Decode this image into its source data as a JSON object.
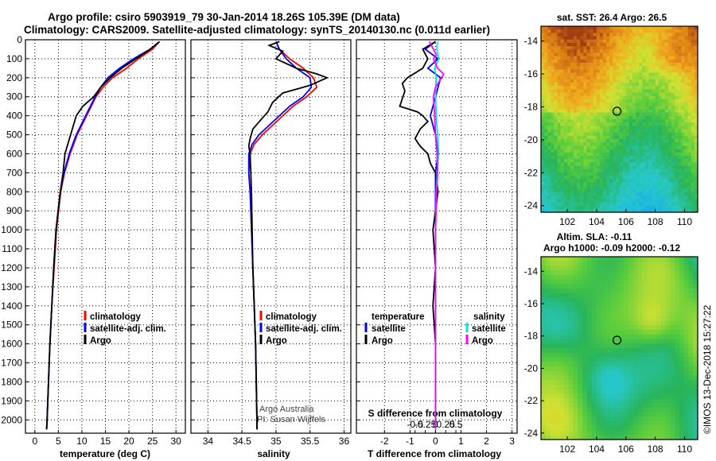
{
  "title_line1": "Argo profile: csiro 5903919_79 30-Jan-2014 18.26S 105.39E (DM data)",
  "title_line2": "Climatology: CARS2009. Satellite-adjusted climatology: synTS_20140130.nc (0.011d earlier)",
  "timestamp": "©IMOS 13-Dec-2018 15:27:22",
  "credit_line1": "Argo Australia",
  "credit_line2": "PI: Susan Wijffels",
  "colors": {
    "climatology": "#ff0000",
    "satellite": "#0000ff",
    "argo": "#000000",
    "sal_satellite": "#00e5e5",
    "sal_argo": "#ff00ff"
  },
  "chart_data": [
    {
      "type": "line",
      "name": "temperature",
      "xlabel": "temperature (deg C)",
      "ylabel": "",
      "xlim": [
        -2,
        32
      ],
      "ylim": [
        2070,
        0
      ],
      "xticks": [
        0,
        5,
        10,
        15,
        20,
        25,
        30
      ],
      "yticks": [
        0,
        100,
        200,
        300,
        400,
        500,
        600,
        700,
        800,
        900,
        1000,
        1100,
        1200,
        1300,
        1400,
        1500,
        1600,
        1700,
        1800,
        1900,
        2000
      ],
      "legend": [
        "climatology",
        "satellite-adj. clim.",
        "Argo"
      ],
      "series": [
        {
          "name": "climatology",
          "color": "#ff0000",
          "depth": [
            10,
            50,
            100,
            150,
            200,
            250,
            300,
            400,
            500,
            600,
            700,
            800,
            1000,
            1200,
            1400,
            1600,
            1800,
            2000,
            2050
          ],
          "values": [
            26.5,
            25,
            22,
            19.5,
            16.5,
            14.5,
            13,
            11,
            9,
            7.5,
            6.3,
            5.5,
            4.6,
            4.1,
            3.6,
            3.2,
            2.9,
            2.6,
            2.5
          ]
        },
        {
          "name": "satellite-adj. clim.",
          "color": "#0000ff",
          "depth": [
            10,
            50,
            100,
            150,
            200,
            250,
            300,
            400,
            500,
            600,
            700,
            800,
            1000,
            1200,
            1400,
            1600,
            1800,
            2000,
            2050
          ],
          "values": [
            26.5,
            24.5,
            21,
            18,
            15.5,
            14,
            12.8,
            10.8,
            8.8,
            7.3,
            6.2,
            5.4,
            4.5,
            4,
            3.6,
            3.2,
            2.9,
            2.6,
            2.5
          ]
        },
        {
          "name": "Argo",
          "color": "#000000",
          "depth": [
            10,
            50,
            100,
            150,
            200,
            250,
            300,
            350,
            400,
            450,
            500,
            600,
            700,
            800,
            1000,
            1200,
            1400,
            1600,
            1800,
            2000,
            2050
          ],
          "values": [
            26.5,
            24.5,
            21.5,
            18.5,
            16,
            14,
            12.5,
            10.2,
            8.8,
            8.2,
            7.6,
            6.4,
            6,
            5.4,
            4.5,
            4,
            3.6,
            3.2,
            2.9,
            2.6,
            2.5
          ]
        }
      ]
    },
    {
      "type": "line",
      "name": "salinity",
      "xlabel": "salinity",
      "ylabel": "",
      "xlim": [
        33.75,
        36.1
      ],
      "ylim": [
        2070,
        0
      ],
      "xticks": [
        34,
        34.5,
        35,
        35.5,
        36
      ],
      "legend": [
        "climatology",
        "satellite-adj. clim.",
        "Argo"
      ],
      "series": [
        {
          "name": "climatology",
          "color": "#ff0000",
          "depth": [
            10,
            50,
            100,
            150,
            200,
            250,
            300,
            350,
            400,
            450,
            500,
            550,
            600,
            700,
            800,
            1000,
            1200,
            1400,
            1600,
            1800,
            2000,
            2050
          ],
          "values": [
            35.0,
            35.05,
            35.2,
            35.4,
            35.55,
            35.6,
            35.45,
            35.25,
            35.1,
            34.95,
            34.8,
            34.68,
            34.62,
            34.6,
            34.62,
            34.64,
            34.66,
            34.68,
            34.7,
            34.71,
            34.72,
            34.72
          ]
        },
        {
          "name": "satellite-adj. clim.",
          "color": "#0000ff",
          "depth": [
            10,
            50,
            100,
            150,
            200,
            250,
            300,
            350,
            400,
            450,
            500,
            550,
            600,
            700,
            800,
            1000,
            1200,
            1400,
            1600,
            1800,
            2000,
            2050
          ],
          "values": [
            35.0,
            35.05,
            35.15,
            35.3,
            35.5,
            35.52,
            35.4,
            35.2,
            35.05,
            34.9,
            34.75,
            34.65,
            34.6,
            34.6,
            34.62,
            34.64,
            34.66,
            34.68,
            34.7,
            34.71,
            34.72,
            34.72
          ]
        },
        {
          "name": "Argo",
          "color": "#000000",
          "depth": [
            10,
            30,
            60,
            100,
            150,
            180,
            200,
            240,
            280,
            330,
            380,
            420,
            470,
            520,
            560,
            600,
            700,
            800,
            1000,
            1200,
            1400,
            1600,
            1800,
            2000,
            2050
          ],
          "values": [
            35.05,
            34.9,
            35.1,
            35.0,
            35.3,
            35.6,
            35.75,
            35.5,
            35.1,
            34.95,
            34.88,
            34.78,
            34.66,
            34.62,
            34.6,
            34.62,
            34.63,
            34.64,
            34.65,
            34.66,
            34.68,
            34.7,
            34.71,
            34.72,
            34.72
          ]
        }
      ]
    },
    {
      "type": "line",
      "name": "difference from climatology",
      "xlabel": "T difference from climatology",
      "xlabel2": "S difference from climatology",
      "xlim": [
        -3.1,
        3.2
      ],
      "ylim": [
        2070,
        0
      ],
      "xticks": [
        -2,
        -1,
        0,
        1,
        2,
        3
      ],
      "s_xticks": [
        -0.5,
        -0.25,
        0,
        0.25,
        0.5
      ],
      "s_tick_labels": [
        "-0.5",
        "-0.25",
        "0",
        "0.25",
        "0.5"
      ],
      "legend_left_title": "temperature",
      "legend_right_title": "salinity",
      "legend": [
        "satellite",
        "Argo",
        "satellite",
        "Argo"
      ],
      "series": [
        {
          "name": "T satellite",
          "color": "#0000ff",
          "depth": [
            10,
            50,
            100,
            150,
            200,
            300,
            400,
            500,
            600,
            700,
            800,
            1000,
            1500,
            2000,
            2050
          ],
          "values": [
            0,
            -0.4,
            0.1,
            -0.3,
            0.2,
            0,
            -0.2,
            0,
            0.1,
            0,
            0,
            0,
            0,
            0,
            0
          ]
        },
        {
          "name": "T Argo",
          "color": "#000000",
          "depth": [
            10,
            50,
            100,
            150,
            200,
            230,
            270,
            310,
            350,
            380,
            400,
            430,
            470,
            520,
            560,
            600,
            650,
            700,
            800,
            900,
            1000,
            1200,
            1400,
            1600,
            2000,
            2050
          ],
          "values": [
            0,
            -0.5,
            -0.3,
            -0.5,
            -1.1,
            -1.3,
            -1.2,
            -1.3,
            -1.4,
            -0.7,
            -0.5,
            -0.3,
            -0.6,
            -0.8,
            -0.6,
            -0.3,
            -0.2,
            0,
            0.1,
            0,
            -0.1,
            0,
            -0.1,
            0,
            0,
            0
          ]
        },
        {
          "name": "S satellite",
          "color": "#00e5e5",
          "s_depth": [
            10,
            50,
            100,
            150,
            200,
            300,
            400,
            500,
            600,
            700,
            800,
            1000,
            1500,
            2000,
            2050
          ],
          "s_values": [
            0.05,
            0.03,
            0.08,
            -0.02,
            0.02,
            0,
            0.02,
            0.05,
            0.08,
            0.04,
            0.02,
            0,
            0,
            0,
            0
          ]
        },
        {
          "name": "S Argo",
          "color": "#ff00ff",
          "s_depth": [
            10,
            50,
            80,
            100,
            150,
            180,
            200,
            250,
            300,
            400,
            500,
            600,
            700,
            800,
            1000,
            1500,
            2000,
            2050
          ],
          "s_values": [
            -0.15,
            -0.05,
            0.02,
            -0.05,
            0.05,
            0.2,
            0.15,
            0,
            -0.05,
            -0.02,
            0,
            0.04,
            0.05,
            0.03,
            0,
            0,
            0,
            0
          ]
        }
      ]
    },
    {
      "type": "heatmap",
      "name": "sst_map",
      "title": "sat. SST: 26.4 Argo: 26.5",
      "xlim": [
        100.2,
        110.9
      ],
      "ylim": [
        -24.4,
        -13.1
      ],
      "xticks": [
        102,
        104,
        106,
        108,
        110
      ],
      "yticks": [
        -14,
        -16,
        -18,
        -20,
        -22,
        -24
      ],
      "point": [
        105.39,
        -18.26
      ]
    },
    {
      "type": "heatmap",
      "name": "sla_map",
      "title_line1": "Altim. SLA: -0.11",
      "title_line2": "Argo h1000: -0.09 h2000: -0.12",
      "xlim": [
        100.2,
        110.9
      ],
      "ylim": [
        -24.4,
        -13.1
      ],
      "xticks": [
        102,
        104,
        106,
        108,
        110
      ],
      "yticks": [
        -14,
        -16,
        -18,
        -20,
        -22,
        -24
      ],
      "point": [
        105.39,
        -18.26
      ]
    }
  ]
}
